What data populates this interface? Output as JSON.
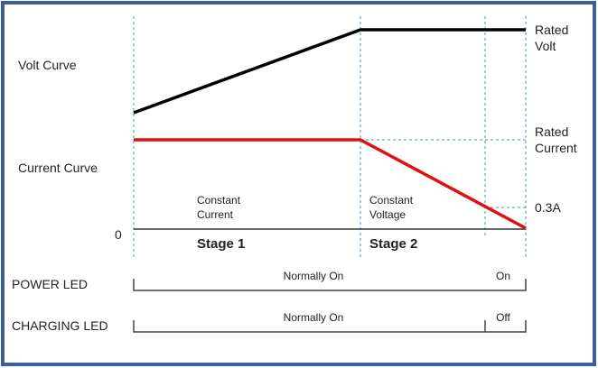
{
  "labels": {
    "volt_curve": "Volt Curve",
    "current_curve": "Current Curve",
    "zero": "0",
    "rated_volt": [
      "Rated",
      "Volt"
    ],
    "rated_current": [
      "Rated",
      "Current"
    ],
    "cutoff_current": "0.3A",
    "stage1_mode": [
      "Constant",
      "Current"
    ],
    "stage2_mode": [
      "Constant",
      "Voltage"
    ],
    "stage1": "Stage 1",
    "stage2": "Stage 2"
  },
  "leds": [
    {
      "name": "POWER LED",
      "main_state": "Normally On",
      "end_state": "On"
    },
    {
      "name": "CHARGING LED",
      "main_state": "Normally On",
      "end_state": "Off"
    }
  ],
  "colors": {
    "volt_line": "#000000",
    "current_line": "#e01010",
    "guide_dashes": "#4a90c8",
    "frame": "#3a5f9a"
  }
}
